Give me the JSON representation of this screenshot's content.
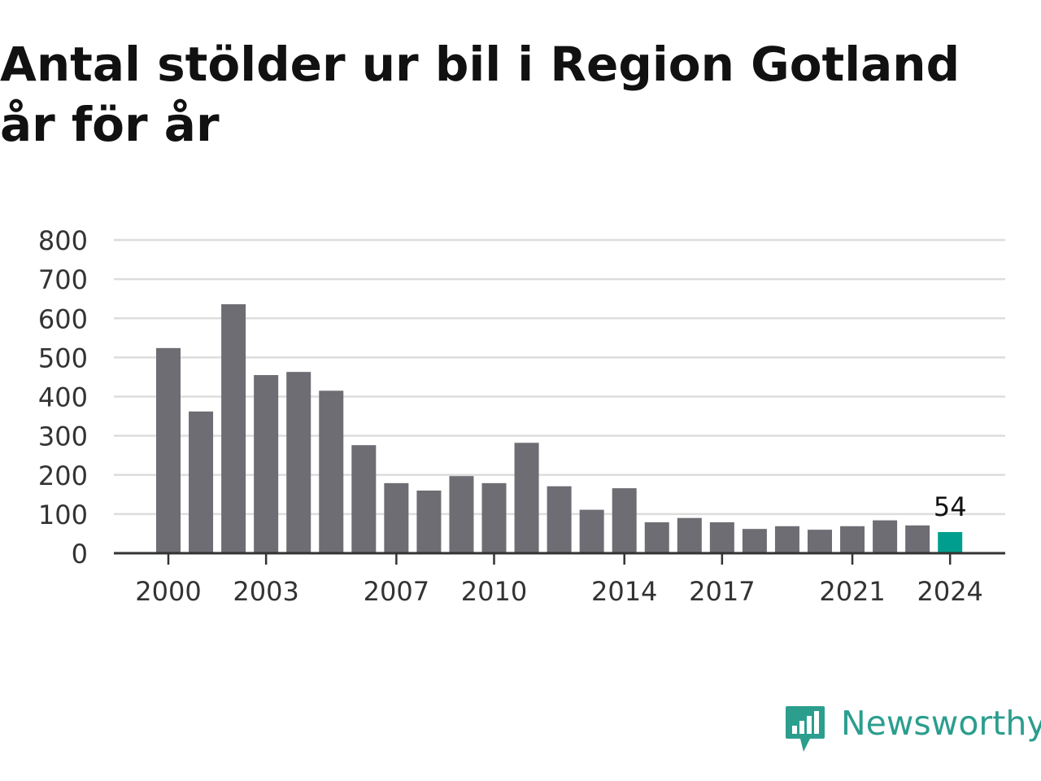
{
  "title": "Antal stölder ur bil i Region Gotland år för år",
  "colors": {
    "bar": "#6e6d73",
    "highlight": "#009e8e",
    "grid": "#dddddd",
    "axis": "#333333",
    "brand": "#2b9e8e"
  },
  "brand": {
    "name": "Newsworthy",
    "icon": "chat-bar-chart-icon"
  },
  "chart_data": {
    "type": "bar",
    "title": "Antal stölder ur bil i Region Gotland år för år",
    "xlabel": "",
    "ylabel": "",
    "ylim": [
      0,
      800
    ],
    "yticks": [
      0,
      100,
      200,
      300,
      400,
      500,
      600,
      700,
      800
    ],
    "xtick_labels": [
      "2000",
      "2003",
      "2007",
      "2010",
      "2014",
      "2017",
      "2021",
      "2024"
    ],
    "categories": [
      "2000",
      "2001",
      "2002",
      "2003",
      "2004",
      "2005",
      "2006",
      "2007",
      "2008",
      "2009",
      "2010",
      "2011",
      "2012",
      "2013",
      "2014",
      "2015",
      "2016",
      "2017",
      "2018",
      "2019",
      "2020",
      "2021",
      "2022",
      "2023",
      "2024"
    ],
    "values": [
      524,
      362,
      636,
      455,
      463,
      415,
      276,
      179,
      160,
      197,
      179,
      282,
      171,
      111,
      166,
      79,
      90,
      79,
      62,
      69,
      60,
      69,
      84,
      71,
      54
    ],
    "highlight": {
      "category": "2024",
      "label": "54"
    },
    "grid": true,
    "legend": "none"
  }
}
